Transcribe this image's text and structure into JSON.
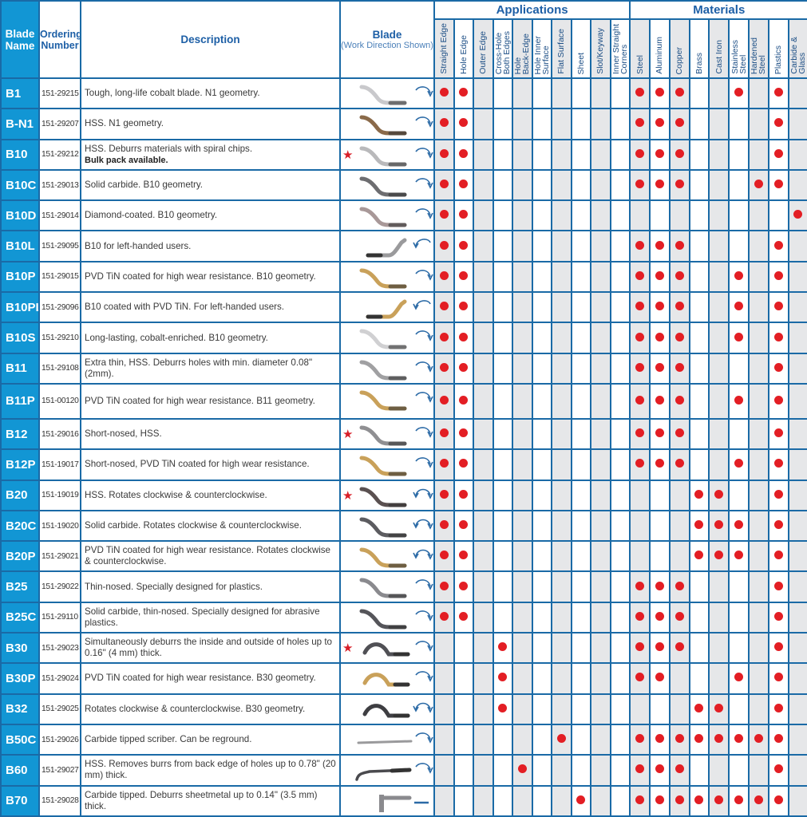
{
  "header": {
    "blade_name": "Blade Name",
    "ordering_number": "Ordering Number",
    "description": "Description",
    "blade": "Blade",
    "blade_sub": "(Work Direction Shown)",
    "applications": "Applications",
    "materials": "Materials"
  },
  "application_columns": [
    "Straight Edge",
    "Hole Edge",
    "Outer Edge",
    "Cross-Hole\nBoth Edges",
    "Hole\nBack-Edge",
    "Hole Inner\nSurface",
    "Flat Surface",
    "Sheet",
    "Slot/Keyway",
    "Inner Straight\nCorners"
  ],
  "material_columns": [
    "Steel",
    "Aluminum",
    "Copper",
    "Brass",
    "Cast Iron",
    "Stainless\nSteel",
    "Hardened\nSteel",
    "Plastics",
    "Carbide &\nGlass"
  ],
  "colors": {
    "accent": "#1296d4",
    "grid": "#1a6aa6",
    "dot": "#e31e24",
    "shade": "#e6e7e9",
    "star": "#d81e27"
  },
  "rows": [
    {
      "name": "B1",
      "number": "151-29215",
      "desc": "Tough, long-life cobalt blade. N1 geometry.",
      "star": false,
      "blade_color": "#c9c9cc",
      "direction": "clockwise",
      "shape": "standard",
      "apps": [
        0,
        1
      ],
      "mats": [
        0,
        1,
        2,
        5,
        7
      ]
    },
    {
      "name": "B-N1",
      "number": "151-29207",
      "desc": "HSS. N1 geometry.",
      "star": false,
      "blade_color": "#8a6a4a",
      "direction": "clockwise",
      "shape": "standard",
      "apps": [
        0,
        1
      ],
      "mats": [
        0,
        1,
        2,
        7
      ]
    },
    {
      "name": "B10",
      "number": "151-29212",
      "desc": "HSS. Deburrs materials with spiral chips.",
      "note": "Bulk pack available.",
      "star": true,
      "blade_color": "#b9b9bb",
      "direction": "clockwise",
      "shape": "standard",
      "apps": [
        0,
        1
      ],
      "mats": [
        0,
        1,
        2,
        7
      ]
    },
    {
      "name": "B10C",
      "number": "151-29013",
      "desc": "Solid carbide. B10 geometry.",
      "star": false,
      "blade_color": "#6d6d70",
      "direction": "clockwise",
      "shape": "standard",
      "apps": [
        0,
        1
      ],
      "mats": [
        0,
        1,
        2,
        6,
        7
      ]
    },
    {
      "name": "B10D",
      "number": "151-29014",
      "desc": "Diamond-coated. B10 geometry.",
      "star": false,
      "blade_color": "#a89898",
      "direction": "clockwise",
      "shape": "standard",
      "apps": [
        0,
        1
      ],
      "mats": [
        8
      ]
    },
    {
      "name": "B10L",
      "number": "151-29095",
      "desc": "B10 for left-handed users.",
      "star": false,
      "blade_color": "#9a9a9c",
      "direction": "counterclockwise",
      "shape": "left",
      "apps": [
        0,
        1
      ],
      "mats": [
        0,
        1,
        2,
        7
      ]
    },
    {
      "name": "B10P",
      "number": "151-29015",
      "desc": "PVD TiN coated for high wear resistance. B10 geometry.",
      "star": false,
      "blade_color": "#c9a15a",
      "direction": "clockwise",
      "shape": "standard",
      "apps": [
        0,
        1
      ],
      "mats": [
        0,
        1,
        2,
        5,
        7
      ]
    },
    {
      "name": "B10PL",
      "number": "151-29096",
      "desc": "B10 coated with PVD TiN. For left-handed users.",
      "star": false,
      "blade_color": "#c9a15a",
      "direction": "counterclockwise",
      "shape": "left",
      "apps": [
        0,
        1
      ],
      "mats": [
        0,
        1,
        2,
        5,
        7
      ]
    },
    {
      "name": "B10S",
      "number": "151-29210",
      "desc": "Long-lasting, cobalt-enriched. B10 geometry.",
      "star": false,
      "blade_color": "#d0d0d2",
      "direction": "clockwise",
      "shape": "standard",
      "apps": [
        0,
        1
      ],
      "mats": [
        0,
        1,
        2,
        5,
        7
      ]
    },
    {
      "name": "B11",
      "number": "151-29108",
      "desc": "Extra thin, HSS. Deburrs holes with min. diameter 0.08\" (2mm).",
      "star": false,
      "blade_color": "#a0a0a2",
      "direction": "clockwise",
      "shape": "standard",
      "apps": [
        0,
        1
      ],
      "mats": [
        0,
        1,
        2,
        7
      ]
    },
    {
      "name": "B11P",
      "number": "151-00120",
      "desc": "PVD TiN coated for high wear resistance. B11 geometry.",
      "star": false,
      "blade_color": "#c9a15a",
      "direction": "clockwise",
      "shape": "standard",
      "apps": [
        0,
        1
      ],
      "mats": [
        0,
        1,
        2,
        5,
        7
      ]
    },
    {
      "name": "B12",
      "number": "151-29016",
      "desc": "Short-nosed, HSS.",
      "star": true,
      "blade_color": "#8f8f92",
      "direction": "clockwise",
      "shape": "standard",
      "apps": [
        0,
        1
      ],
      "mats": [
        0,
        1,
        2,
        7
      ]
    },
    {
      "name": "B12P",
      "number": "151-19017",
      "desc": "Short-nosed, PVD TiN coated for high wear resistance.",
      "star": false,
      "blade_color": "#c9a15a",
      "direction": "clockwise",
      "shape": "standard",
      "apps": [
        0,
        1
      ],
      "mats": [
        0,
        1,
        2,
        5,
        7
      ]
    },
    {
      "name": "B20",
      "number": "151-19019",
      "desc": "HSS. Rotates clockwise & counterclockwise.",
      "star": true,
      "blade_color": "#5a5050",
      "direction": "both",
      "shape": "standard",
      "apps": [
        0,
        1
      ],
      "mats": [
        3,
        4,
        7
      ]
    },
    {
      "name": "B20C",
      "number": "151-19020",
      "desc": "Solid carbide. Rotates clockwise & counterclockwise.",
      "star": false,
      "blade_color": "#5c5c60",
      "direction": "both",
      "shape": "standard",
      "apps": [
        0,
        1
      ],
      "mats": [
        3,
        4,
        5,
        7
      ]
    },
    {
      "name": "B20P",
      "number": "151-29021",
      "desc": "PVD TiN coated for high wear resistance. Rotates clockwise & counterclockwise.",
      "star": false,
      "blade_color": "#c9a15a",
      "direction": "both",
      "shape": "standard",
      "apps": [
        0,
        1
      ],
      "mats": [
        3,
        4,
        5,
        7
      ]
    },
    {
      "name": "B25",
      "number": "151-29022",
      "desc": "Thin-nosed. Specially designed for plastics.",
      "star": false,
      "blade_color": "#8a8a8e",
      "direction": "clockwise",
      "shape": "standard",
      "apps": [
        0,
        1
      ],
      "mats": [
        0,
        1,
        2,
        7
      ]
    },
    {
      "name": "B25C",
      "number": "151-29110",
      "desc": "Solid carbide, thin-nosed. Specially designed for abrasive plastics.",
      "star": false,
      "blade_color": "#55555a",
      "direction": "clockwise",
      "shape": "standard",
      "apps": [
        0,
        1
      ],
      "mats": [
        0,
        1,
        2,
        7
      ]
    },
    {
      "name": "B30",
      "number": "151-29023",
      "desc": "Simultaneously deburrs the inside and outside of holes up to 0.16\" (4 mm) thick.",
      "star": true,
      "blade_color": "#505055",
      "direction": "clockwise",
      "shape": "hook",
      "apps": [
        3
      ],
      "mats": [
        0,
        1,
        2,
        7
      ]
    },
    {
      "name": "B30P",
      "number": "151-29024",
      "desc": "PVD TiN coated for high wear resistance. B30 geometry.",
      "star": false,
      "blade_color": "#c9a15a",
      "direction": "clockwise",
      "shape": "hook",
      "apps": [
        3
      ],
      "mats": [
        0,
        1,
        5,
        7
      ]
    },
    {
      "name": "B32",
      "number": "151-29025",
      "desc": "Rotates clockwise & counterclockwise. B30 geometry.",
      "star": false,
      "blade_color": "#3e3e42",
      "direction": "both",
      "shape": "hook",
      "apps": [
        3
      ],
      "mats": [
        3,
        4,
        7
      ]
    },
    {
      "name": "B50C",
      "number": "151-29026",
      "desc": "Carbide tipped scriber. Can be reground.",
      "star": false,
      "blade_color": "#9a9a9c",
      "direction": "clockwise",
      "shape": "scriber",
      "apps": [
        6
      ],
      "mats": [
        0,
        1,
        2,
        3,
        4,
        5,
        6,
        7
      ]
    },
    {
      "name": "B60",
      "number": "151-29027",
      "desc": "HSS. Removes burrs from back edge of holes up to 0.78\" (20 mm) thick.",
      "star": false,
      "blade_color": "#4a4a4e",
      "direction": "clockwise",
      "shape": "back",
      "apps": [
        4
      ],
      "mats": [
        0,
        1,
        2,
        7
      ]
    },
    {
      "name": "B70",
      "number": "151-29028",
      "desc": "Carbide tipped. Deburrs sheetmetal up to 0.14\" (3.5 mm) thick.",
      "star": false,
      "blade_color": "#8a8a8e",
      "direction": "straight",
      "shape": "sheet",
      "apps": [
        7
      ],
      "mats": [
        0,
        1,
        2,
        3,
        4,
        5,
        6,
        7
      ]
    }
  ]
}
